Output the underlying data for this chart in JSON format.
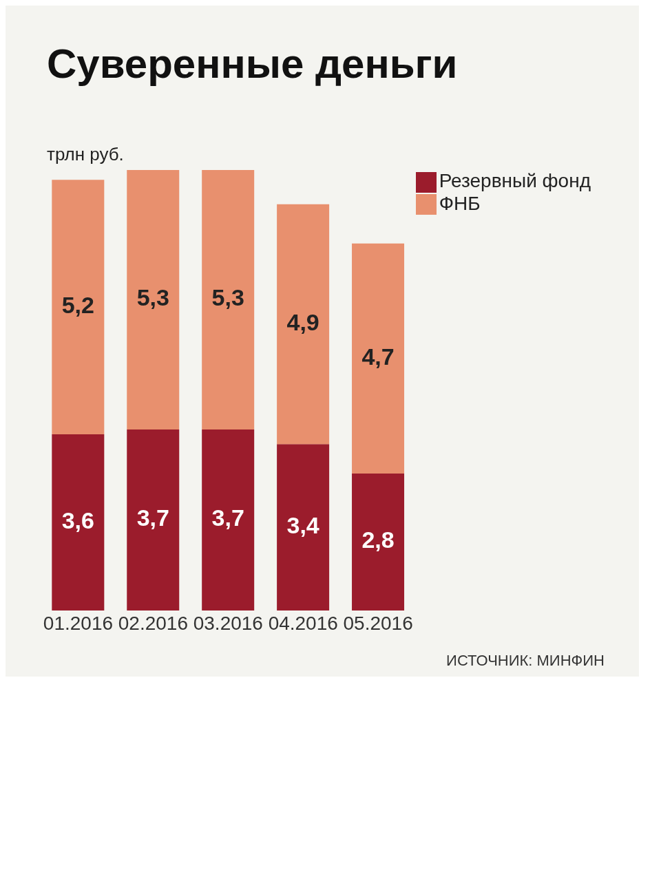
{
  "chart_data": {
    "type": "bar",
    "title": "Суверенные деньги",
    "ylabel": "трлн руб.",
    "categories": [
      "01.2016",
      "02.2016",
      "03.2016",
      "04.2016",
      "05.2016"
    ],
    "stacked": true,
    "series": [
      {
        "name": "Резервный фонд",
        "color": "#9b1c2c",
        "values": [
          3.6,
          3.7,
          3.7,
          3.4,
          2.8
        ],
        "value_labels": [
          "3,6",
          "3,7",
          "3,7",
          "3,4",
          "2,8"
        ]
      },
      {
        "name": "ФНБ",
        "color": "#e8906e",
        "values": [
          5.2,
          5.3,
          5.3,
          4.9,
          4.7
        ],
        "value_labels": [
          "5,2",
          "5,3",
          "5,3",
          "4,9",
          "4,7"
        ]
      }
    ],
    "legend": "top right",
    "annotations": [
      "ИСТОЧНИК: МИНФИН"
    ]
  }
}
